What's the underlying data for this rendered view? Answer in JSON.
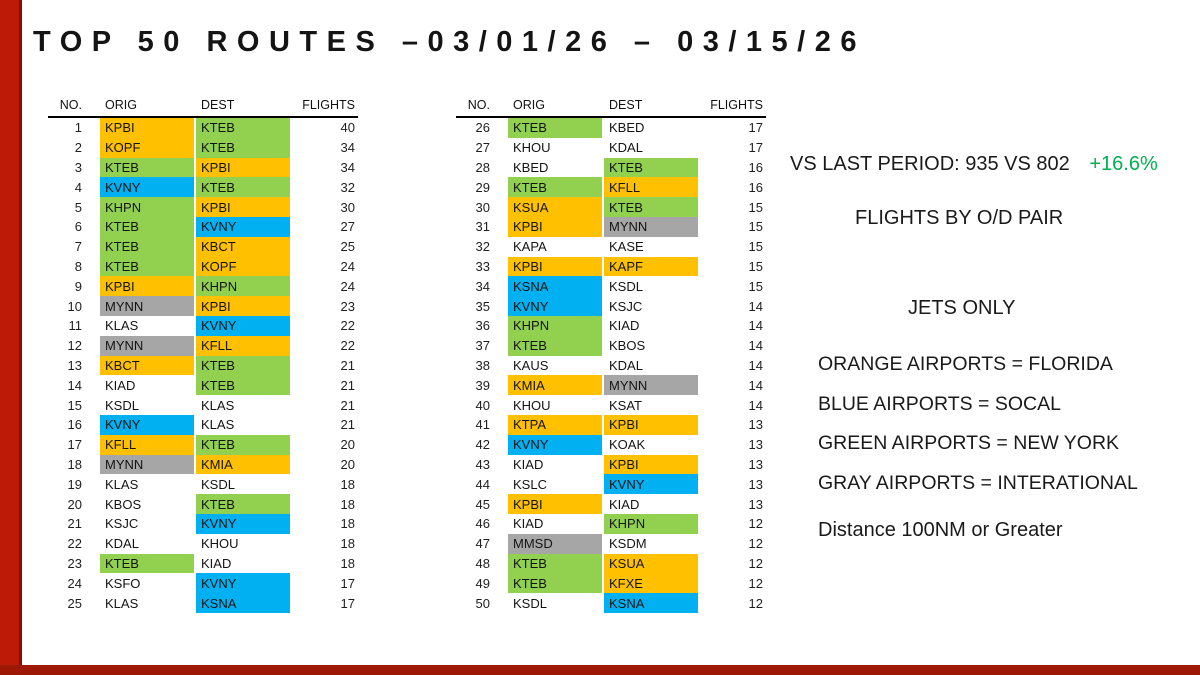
{
  "title": "TOP 50 ROUTES –03/01/26 – 03/15/26",
  "table_headers": {
    "no": "NO.",
    "orig": "ORIG",
    "dest": "DEST",
    "flights": "FLIGHTS"
  },
  "colors": {
    "orange": "#FFC000",
    "green": "#92D050",
    "blue": "#00B0F0",
    "gray": "#A6A6A6",
    "none": "transparent"
  },
  "tables": [
    {
      "rows": [
        [
          1,
          "KPBI",
          "orange",
          "KTEB",
          "green",
          40
        ],
        [
          2,
          "KOPF",
          "orange",
          "KTEB",
          "green",
          34
        ],
        [
          3,
          "KTEB",
          "green",
          "KPBI",
          "orange",
          34
        ],
        [
          4,
          "KVNY",
          "blue",
          "KTEB",
          "green",
          32
        ],
        [
          5,
          "KHPN",
          "green",
          "KPBI",
          "orange",
          30
        ],
        [
          6,
          "KTEB",
          "green",
          "KVNY",
          "blue",
          27
        ],
        [
          7,
          "KTEB",
          "green",
          "KBCT",
          "orange",
          25
        ],
        [
          8,
          "KTEB",
          "green",
          "KOPF",
          "orange",
          24
        ],
        [
          9,
          "KPBI",
          "orange",
          "KHPN",
          "green",
          24
        ],
        [
          10,
          "MYNN",
          "gray",
          "KPBI",
          "orange",
          23
        ],
        [
          11,
          "KLAS",
          "none",
          "KVNY",
          "blue",
          22
        ],
        [
          12,
          "MYNN",
          "gray",
          "KFLL",
          "orange",
          22
        ],
        [
          13,
          "KBCT",
          "orange",
          "KTEB",
          "green",
          21
        ],
        [
          14,
          "KIAD",
          "none",
          "KTEB",
          "green",
          21
        ],
        [
          15,
          "KSDL",
          "none",
          "KLAS",
          "none",
          21
        ],
        [
          16,
          "KVNY",
          "blue",
          "KLAS",
          "none",
          21
        ],
        [
          17,
          "KFLL",
          "orange",
          "KTEB",
          "green",
          20
        ],
        [
          18,
          "MYNN",
          "gray",
          "KMIA",
          "orange",
          20
        ],
        [
          19,
          "KLAS",
          "none",
          "KSDL",
          "none",
          18
        ],
        [
          20,
          "KBOS",
          "none",
          "KTEB",
          "green",
          18
        ],
        [
          21,
          "KSJC",
          "none",
          "KVNY",
          "blue",
          18
        ],
        [
          22,
          "KDAL",
          "none",
          "KHOU",
          "none",
          18
        ],
        [
          23,
          "KTEB",
          "green",
          "KIAD",
          "none",
          18
        ],
        [
          24,
          "KSFO",
          "none",
          "KVNY",
          "blue",
          17
        ],
        [
          25,
          "KLAS",
          "none",
          "KSNA",
          "blue",
          17
        ]
      ]
    },
    {
      "rows": [
        [
          26,
          "KTEB",
          "green",
          "KBED",
          "none",
          17
        ],
        [
          27,
          "KHOU",
          "none",
          "KDAL",
          "none",
          17
        ],
        [
          28,
          "KBED",
          "none",
          "KTEB",
          "green",
          16
        ],
        [
          29,
          "KTEB",
          "green",
          "KFLL",
          "orange",
          16
        ],
        [
          30,
          "KSUA",
          "orange",
          "KTEB",
          "green",
          15
        ],
        [
          31,
          "KPBI",
          "orange",
          "MYNN",
          "gray",
          15
        ],
        [
          32,
          "KAPA",
          "none",
          "KASE",
          "none",
          15
        ],
        [
          33,
          "KPBI",
          "orange",
          "KAPF",
          "orange",
          15
        ],
        [
          34,
          "KSNA",
          "blue",
          "KSDL",
          "none",
          15
        ],
        [
          35,
          "KVNY",
          "blue",
          "KSJC",
          "none",
          14
        ],
        [
          36,
          "KHPN",
          "green",
          "KIAD",
          "none",
          14
        ],
        [
          37,
          "KTEB",
          "green",
          "KBOS",
          "none",
          14
        ],
        [
          38,
          "KAUS",
          "none",
          "KDAL",
          "none",
          14
        ],
        [
          39,
          "KMIA",
          "orange",
          "MYNN",
          "gray",
          14
        ],
        [
          40,
          "KHOU",
          "none",
          "KSAT",
          "none",
          14
        ],
        [
          41,
          "KTPA",
          "orange",
          "KPBI",
          "orange",
          13
        ],
        [
          42,
          "KVNY",
          "blue",
          "KOAK",
          "none",
          13
        ],
        [
          43,
          "KIAD",
          "none",
          "KPBI",
          "orange",
          13
        ],
        [
          44,
          "KSLC",
          "none",
          "KVNY",
          "blue",
          13
        ],
        [
          45,
          "KPBI",
          "orange",
          "KIAD",
          "none",
          13
        ],
        [
          46,
          "KIAD",
          "none",
          "KHPN",
          "green",
          12
        ],
        [
          47,
          "MMSD",
          "gray",
          "KSDM",
          "none",
          12
        ],
        [
          48,
          "KTEB",
          "green",
          "KSUA",
          "orange",
          12
        ],
        [
          49,
          "KTEB",
          "green",
          "KFXE",
          "orange",
          12
        ],
        [
          50,
          "KSDL",
          "none",
          "KSNA",
          "blue",
          12
        ]
      ]
    }
  ],
  "side_panel": {
    "comparison_text": "VS LAST PERIOD: 935 VS 802",
    "comparison_delta": "+16.6%",
    "delta_color": "#00B050",
    "subtitle": "FLIGHTS BY O/D PAIR",
    "jets_only": "JETS ONLY",
    "legend": [
      "ORANGE AIRPORTS = FLORIDA",
      "BLUE AIRPORTS = SOCAL",
      "GREEN AIRPORTS = NEW YORK",
      "GRAY AIRPORTS = INTERATIONAL"
    ],
    "distance_note": "Distance 100NM or Greater"
  }
}
